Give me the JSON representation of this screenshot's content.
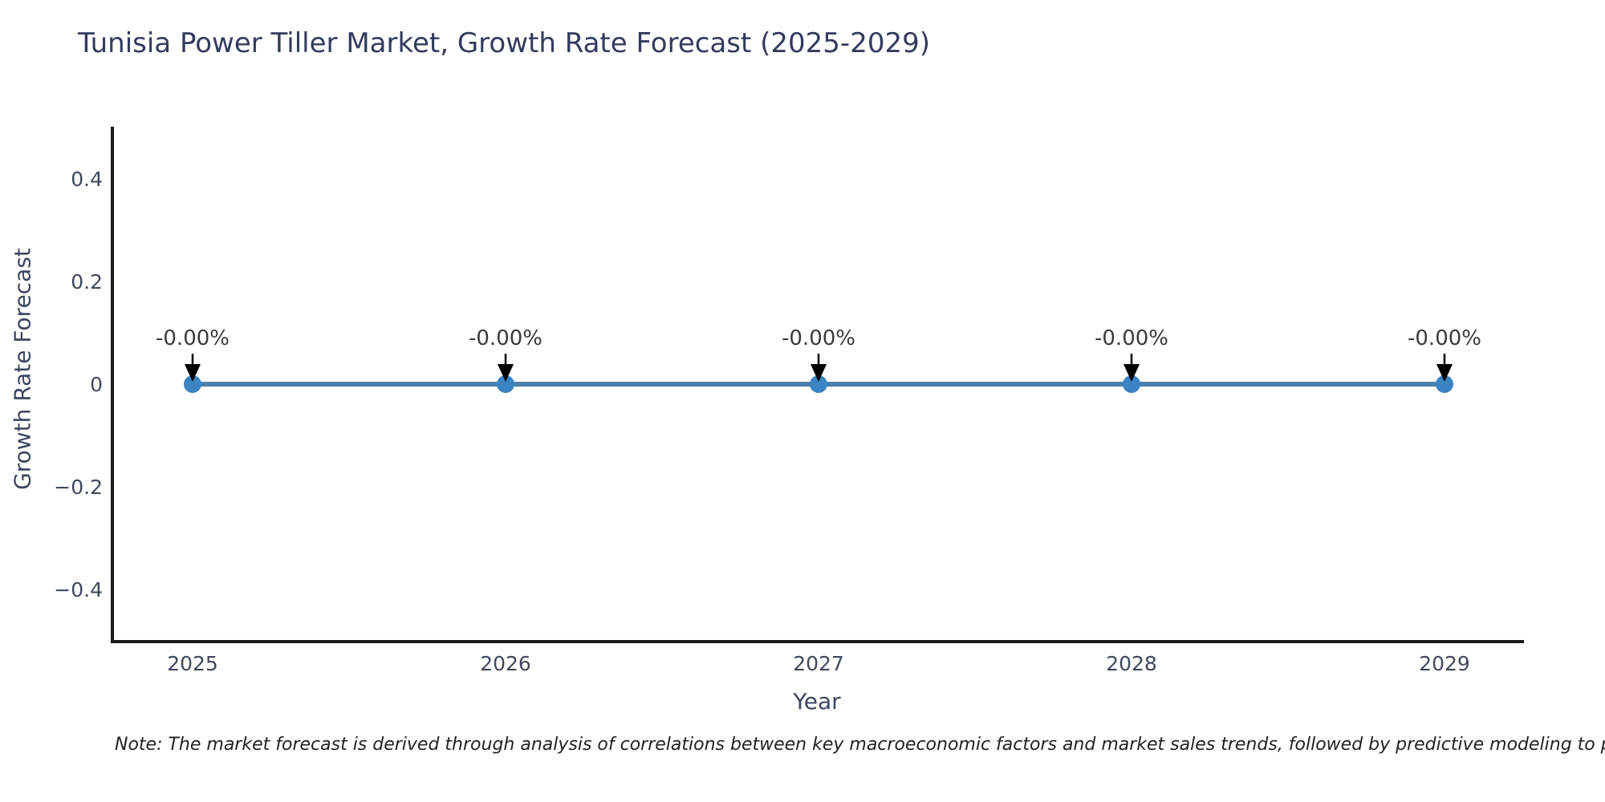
{
  "title": "Tunisia Power Tiller Market, Growth Rate Forecast (2025-2029)",
  "note": "Note: The market forecast is derived through analysis of correlations between key macroeconomic factors and market sales trends, followed by predictive modeling to project future sales.",
  "chart_data": {
    "type": "line",
    "title": "Tunisia Power Tiller Market, Growth Rate Forecast (2025-2029)",
    "xlabel": "Year",
    "ylabel": "Growth Rate Forecast",
    "x": [
      2025,
      2026,
      2027,
      2028,
      2029
    ],
    "values": [
      0,
      0,
      0,
      0,
      0
    ],
    "point_labels": [
      "-0.00%",
      "-0.00%",
      "-0.00%",
      "-0.00%",
      "-0.00%"
    ],
    "xtick_labels": [
      "2025",
      "2026",
      "2027",
      "2028",
      "2029"
    ],
    "yticks": [
      0.4,
      0.2,
      0,
      -0.2,
      -0.4
    ],
    "ytick_labels": [
      "0.4",
      "0.2",
      "0",
      "−0.2",
      "−0.4"
    ],
    "ylim": [
      -0.5,
      0.5
    ],
    "grid": false,
    "legend": "none",
    "line_color": "#4b80ab",
    "marker_color": "#3b84c4",
    "arrow_color": "#000000",
    "axis_color": "#1a1a1a",
    "annotation_color": "#3b3b3b"
  }
}
